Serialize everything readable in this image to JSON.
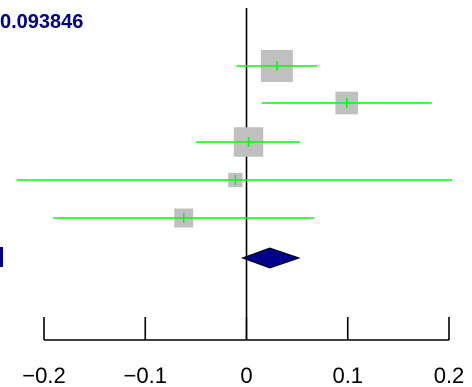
{
  "header_text": "0.093846",
  "colors": {
    "ci_line": "#00ff00",
    "box": "#c0c0c0",
    "summary": "#00008b",
    "axis": "#000000",
    "header": "#00008b"
  },
  "chart_data": {
    "type": "forest",
    "title": "",
    "xlabel": "",
    "ylabel": "",
    "xlim": [
      -0.2,
      0.2
    ],
    "x_ticks": [
      -0.2,
      -0.1,
      0,
      0.1,
      0.2
    ],
    "x_tick_labels": [
      "−0.2",
      "−0.1",
      "0",
      "0.1",
      "0.2"
    ],
    "null_line": 0,
    "studies": [
      {
        "estimate": 0.03,
        "lower": -0.01,
        "upper": 0.07,
        "weight": 1.0
      },
      {
        "estimate": 0.099,
        "lower": 0.015,
        "upper": 0.183,
        "weight": 0.5
      },
      {
        "estimate": 0.002,
        "lower": -0.05,
        "upper": 0.053,
        "weight": 0.85
      },
      {
        "estimate": -0.011,
        "lower": -0.227,
        "upper": 0.203,
        "weight": 0.2
      },
      {
        "estimate": -0.062,
        "lower": -0.191,
        "upper": 0.067,
        "weight": 0.35
      }
    ],
    "summary": {
      "estimate": 0.023,
      "lower": -0.004,
      "upper": 0.052
    }
  }
}
